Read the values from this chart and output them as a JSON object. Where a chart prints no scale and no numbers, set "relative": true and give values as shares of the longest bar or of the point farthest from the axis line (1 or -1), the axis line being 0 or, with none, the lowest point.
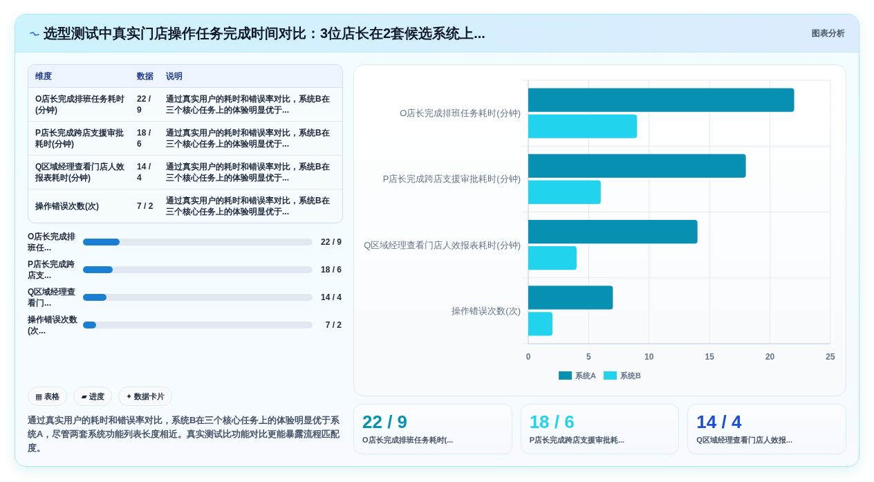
{
  "chart_data": [
    {
      "type": "other",
      "title": "选型测试中真实门店操作任务完成时间对比：3位店长在2套候选系统上...",
      "annotations": [
        "图表分析"
      ]
    },
    {
      "type": "other",
      "categories": [
        "维度",
        "数据",
        "说明"
      ],
      "cell_labels": [
        [
          "O店长完成排班任务耗时(分钟)",
          "22 / 9",
          "通过真实用户的耗时和错误率对比，系统B在三个核心任务上的体验明显优于..."
        ],
        [
          "P店长完成跨店支援审批耗时(分钟)",
          "18 / 6",
          "通过真实用户的耗时和错误率对比，系统B在三个核心任务上的体验明显优于..."
        ],
        [
          "Q区域经理查看门店人效报表耗时(分钟)",
          "14 / 4",
          "通过真实用户的耗时和错误率对比，系统B在三个核心任务上的体验明显优于..."
        ],
        [
          "操作错误次数(次)",
          "7 / 2",
          "通过真实用户的耗时和错误率对比，系统B在三个核心任务上的体验明显优于..."
        ]
      ]
    },
    {
      "type": "bar",
      "orientation": "horizontal",
      "relative": true,
      "categories": [
        "O店长完成排班任...",
        "P店长完成跨店支...",
        "Q区域经理查看门...",
        "操作错误次数(次..."
      ],
      "values": [
        1,
        0.81,
        0.64,
        0.36
      ],
      "annotations": [
        "22 / 9",
        "18 / 6",
        "14 / 4",
        "7 / 2"
      ],
      "color": "#1a7fd0"
    },
    {
      "type": "other",
      "categories": [
        "▦ 表格",
        "▰ 进度",
        "✦ 数据卡片"
      ],
      "annotations": [
        "通过真实用户的耗时和错误率对比，系统B在三个核心任务上的体验明显优于系统A，尽管两套系统功能列表长度相近。真实测试比功能对比更能暴露流程匹配度。"
      ]
    },
    {
      "type": "bar",
      "orientation": "horizontal",
      "categories": [
        "O店长完成排班任务耗时(分钟)",
        "P店长完成跨店支援审批耗时(分钟)",
        "Q区域经理查看门店人效报表耗时(分钟)",
        "操作错误次数(次)"
      ],
      "series": [
        {
          "name": "系统A",
          "color": "#0891b2",
          "values": [
            22,
            18,
            14,
            7
          ]
        },
        {
          "name": "系统B",
          "color": "#22d3ee",
          "values": [
            9,
            6,
            4,
            2
          ]
        }
      ],
      "xlim": [
        0,
        25
      ],
      "xticks": [
        0,
        5,
        10,
        15,
        20,
        25
      ],
      "grid": true,
      "legend": "bottom"
    },
    {
      "type": "other",
      "categories": [
        "O店长完成排班任务耗时(...",
        "P店长完成跨店支援审批耗...",
        "Q区域经理查看门店人效报..."
      ],
      "value_labels": [
        "22 / 9",
        "18 / 6",
        "14 / 4"
      ]
    }
  ]
}
